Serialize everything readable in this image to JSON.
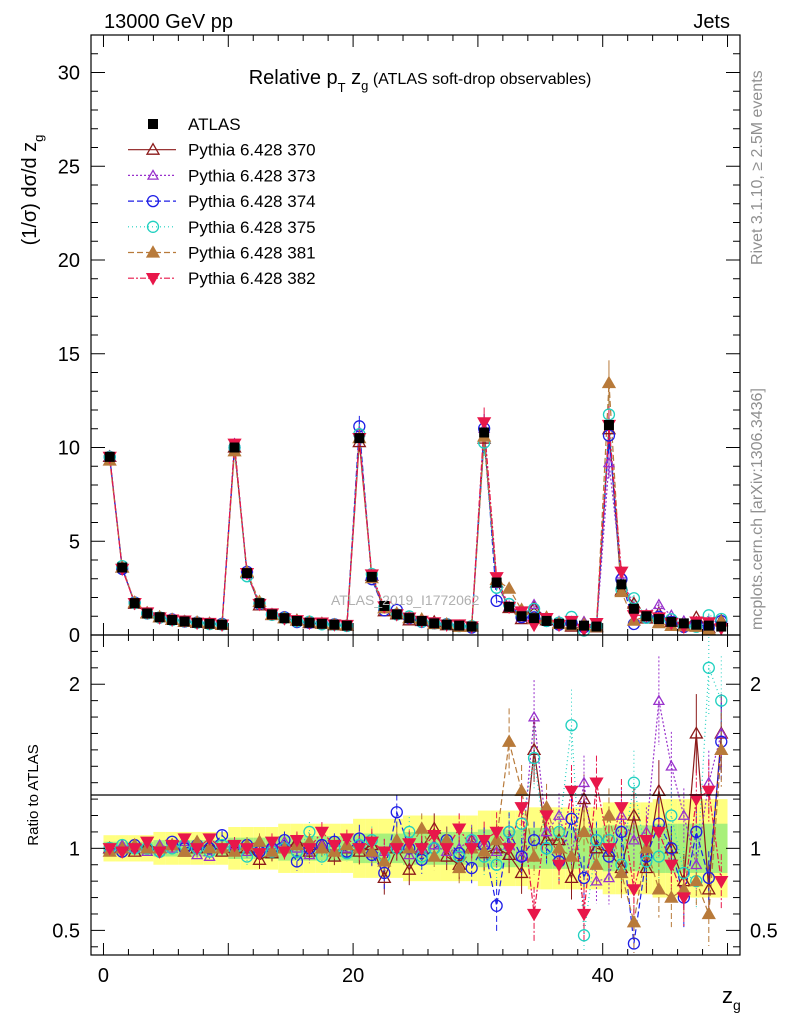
{
  "header": {
    "left": "13000 GeV pp",
    "right": "Jets"
  },
  "side": {
    "rivet": "Rivet 3.1.10, ≥ 2.5M events",
    "mcplots": "mcplots.cern.ch [arXiv:1306.3436]"
  },
  "watermark": "ATLAS_2019_I1772062",
  "chart_data": {
    "type": "scatter",
    "title_main": "Relative p",
    "title_sub_T": "T",
    "title_z": " z",
    "title_sub_g": "g",
    "title_tail": " (ATLAS soft-drop observables)",
    "ylabel_main": "(1/σ) dσ/d z",
    "ylabel_sub": "g",
    "ylabel_ratio": "Ratio to ATLAS",
    "xlabel_main": "z",
    "xlabel_sub": "g",
    "xlim": [
      -1,
      51
    ],
    "ylim_main": [
      0,
      32
    ],
    "ylim_ratio": [
      0.35,
      2.3
    ],
    "x_ticks": [
      "0",
      "20",
      "40"
    ],
    "y_ticks_main": [
      "0",
      "5",
      "10",
      "15",
      "20",
      "25",
      "30"
    ],
    "y_ticks_ratio": [
      "0.5",
      "1",
      "2"
    ],
    "legend": [
      "ATLAS",
      "Pythia 6.428 370",
      "Pythia 6.428 373",
      "Pythia 6.428 374",
      "Pythia 6.428 375",
      "Pythia 6.428 381",
      "Pythia 6.428 382"
    ],
    "colors": {
      "ATLAS": "#000000",
      "p370": "#8b1a1a",
      "p373": "#9932cc",
      "p374": "#1e1ee6",
      "p375": "#20d0c0",
      "p381": "#b87a3a",
      "p382": "#e8174a",
      "band_inner": "#a8f07a",
      "band_outer": "#ffff80"
    },
    "x": [
      0.5,
      1.5,
      2.5,
      3.5,
      4.5,
      5.5,
      6.5,
      7.5,
      8.5,
      9.5,
      10.5,
      11.5,
      12.5,
      13.5,
      14.5,
      15.5,
      16.5,
      17.5,
      18.5,
      19.5,
      20.5,
      21.5,
      22.5,
      23.5,
      24.5,
      25.5,
      26.5,
      27.5,
      28.5,
      29.5,
      30.5,
      31.5,
      32.5,
      33.5,
      34.5,
      35.5,
      36.5,
      37.5,
      38.5,
      39.5,
      40.5,
      41.5,
      42.5,
      43.5,
      44.5,
      45.5,
      46.5,
      47.5,
      48.5,
      49.5
    ],
    "atlas": [
      9.5,
      3.6,
      1.7,
      1.15,
      0.95,
      0.8,
      0.72,
      0.65,
      0.6,
      0.55,
      10.0,
      3.3,
      1.7,
      1.1,
      0.9,
      0.75,
      0.65,
      0.6,
      0.55,
      0.5,
      10.5,
      3.1,
      1.55,
      1.1,
      0.9,
      0.75,
      0.62,
      0.55,
      0.5,
      0.45,
      10.8,
      2.8,
      1.5,
      1.0,
      0.9,
      0.75,
      0.6,
      0.55,
      0.5,
      0.45,
      11.2,
      2.7,
      1.4,
      1.0,
      0.85,
      0.7,
      0.62,
      0.55,
      0.5,
      0.45
    ],
    "series": [
      {
        "name": "Pythia 6.428 370",
        "ratio": [
          1.0,
          1.0,
          0.98,
          1.02,
          1.0,
          1.02,
          0.98,
          1.0,
          1.02,
          0.98,
          1.0,
          1.0,
          0.93,
          0.97,
          1.0,
          1.04,
          0.98,
          1.02,
          0.95,
          1.0,
          0.98,
          1.02,
          0.82,
          1.0,
          0.87,
          1.0,
          1.12,
          0.95,
          0.9,
          1.05,
          0.97,
          1.0,
          0.96,
          0.85,
          1.6,
          1.05,
          1.05,
          0.82,
          1.3,
          1.0,
          0.98,
          0.88,
          1.2,
          0.88,
          1.35,
          1.0,
          0.8,
          1.7,
          0.75,
          1.7
        ]
      },
      {
        "name": "Pythia 6.428 373",
        "ratio": [
          1.0,
          1.02,
          1.0,
          0.98,
          1.02,
          1.0,
          1.04,
          0.96,
          0.95,
          1.0,
          1.02,
          0.98,
          1.0,
          1.02,
          1.04,
          1.0,
          0.96,
          1.02,
          0.98,
          1.0,
          1.03,
          0.97,
          0.98,
          1.02,
          0.96,
          1.0,
          1.02,
          0.98,
          1.0,
          1.06,
          1.02,
          0.98,
          1.02,
          0.95,
          1.8,
          1.1,
          1.2,
          0.95,
          1.4,
          0.8,
          0.82,
          1.2,
          1.05,
          1.1,
          1.9,
          1.5,
          1.2,
          0.9,
          1.4,
          1.7
        ]
      },
      {
        "name": "Pythia 6.428 374",
        "ratio": [
          1.0,
          0.98,
          1.02,
          1.0,
          0.98,
          1.04,
          1.0,
          1.02,
          1.0,
          1.08,
          1.0,
          1.02,
          0.98,
          1.0,
          1.05,
          0.92,
          1.0,
          1.02,
          1.04,
          0.98,
          1.06,
          0.96,
          0.85,
          1.22,
          1.0,
          0.93,
          1.0,
          1.05,
          0.97,
          0.88,
          1.02,
          0.65,
          1.1,
          0.95,
          1.05,
          1.0,
          0.92,
          1.18,
          0.82,
          1.05,
          0.95,
          1.1,
          0.42,
          0.95,
          1.15,
          1.0,
          0.7,
          1.1,
          0.82,
          1.65
        ]
      },
      {
        "name": "Pythia 6.428 375",
        "ratio": [
          1.0,
          1.02,
          1.0,
          1.0,
          0.98,
          1.0,
          1.02,
          1.0,
          0.98,
          1.02,
          1.0,
          0.95,
          1.0,
          0.98,
          1.0,
          0.98,
          1.1,
          0.95,
          1.0,
          0.97,
          1.02,
          1.05,
          0.95,
          1.0,
          1.1,
          0.95,
          1.0,
          1.03,
          0.95,
          1.05,
          0.95,
          0.9,
          1.1,
          1.15,
          1.55,
          1.0,
          1.1,
          1.75,
          0.47,
          1.05,
          1.05,
          0.9,
          1.4,
          0.92,
          0.95,
          1.2,
          0.85,
          0.8,
          2.1,
          1.9
        ]
      },
      {
        "name": "Pythia 6.428 381",
        "ratio": [
          0.98,
          1.0,
          1.02,
          1.0,
          1.0,
          1.02,
          0.98,
          1.04,
          1.0,
          1.0,
          0.98,
          1.02,
          1.04,
          0.98,
          1.0,
          1.02,
          1.04,
          1.0,
          0.98,
          1.02,
          1.0,
          0.98,
          0.92,
          1.05,
          1.0,
          1.12,
          0.95,
          1.05,
          0.88,
          1.0,
          0.98,
          1.05,
          1.65,
          1.35,
          0.95,
          1.25,
          1.0,
          0.95,
          1.1,
          0.9,
          1.2,
          0.85,
          0.55,
          1.0,
          0.75,
          0.7,
          0.75,
          0.8,
          0.6,
          1.6
        ]
      },
      {
        "name": "Pythia 6.428 382",
        "ratio": [
          1.0,
          0.98,
          1.0,
          1.04,
          0.98,
          1.02,
          1.06,
          1.0,
          1.06,
          1.0,
          1.02,
          1.0,
          0.97,
          1.04,
          0.98,
          1.05,
          1.0,
          1.1,
          1.02,
          1.06,
          1.0,
          1.04,
          0.98,
          1.0,
          1.03,
          1.0,
          1.08,
          1.0,
          1.12,
          1.0,
          1.05,
          1.1,
          1.0,
          1.25,
          0.6,
          1.2,
          0.9,
          1.35,
          0.6,
          1.4,
          1.0,
          1.25,
          0.75,
          1.05,
          1.1,
          0.9,
          0.7,
          1.3,
          1.35,
          0.8
        ]
      }
    ]
  }
}
